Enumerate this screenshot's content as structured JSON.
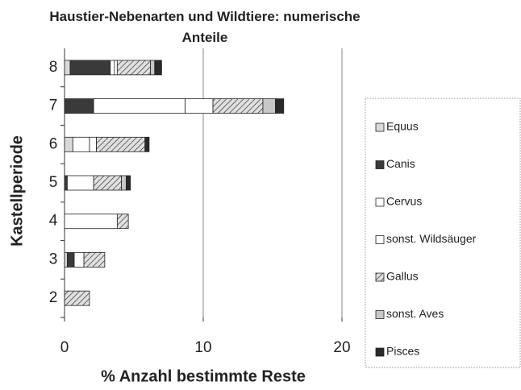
{
  "chart_data": {
    "type": "stacked_barh",
    "title": "Haustier-Nebenarten und Wildtiere: numerische Anteile",
    "x_label": "% Anzahl bestimmte Reste",
    "y_label": "Kastellperiode",
    "categories": [
      "2",
      "3",
      "4",
      "5",
      "6",
      "7",
      "8"
    ],
    "series": [
      {
        "name": "Equus",
        "color": "#d9d9d9",
        "values": [
          0,
          0.2,
          0,
          0,
          0.6,
          0,
          0.4
        ]
      },
      {
        "name": "Canis",
        "color": "#3a3a3a",
        "values": [
          0,
          0.5,
          0,
          0.2,
          0,
          2.1,
          2.9
        ]
      },
      {
        "name": "Cervus",
        "color": "#ffffff",
        "values": [
          0,
          0.7,
          3.8,
          1.9,
          1.2,
          6.6,
          0.3
        ]
      },
      {
        "name": "sonst. Wildsäuger",
        "color": "#ffffff",
        "values": [
          0,
          0,
          0,
          0,
          0.5,
          2.0,
          0.2
        ]
      },
      {
        "name": "Gallus",
        "color": "#bdbdbd",
        "pattern": "hatch",
        "values": [
          1.8,
          1.5,
          0.8,
          2.0,
          3.5,
          3.6,
          2.4
        ]
      },
      {
        "name": "sonst. Aves",
        "color": "#c8c8c8",
        "values": [
          0,
          0,
          0,
          0.35,
          0,
          0.9,
          0.3
        ]
      },
      {
        "name": "Pisces",
        "color": "#2a2a2a",
        "values": [
          0,
          0,
          0,
          0.3,
          0.3,
          0.6,
          0.5
        ]
      }
    ],
    "xlim": [
      0,
      20
    ],
    "xticks": [
      0,
      10,
      20
    ],
    "grid": true,
    "legend": "right"
  }
}
